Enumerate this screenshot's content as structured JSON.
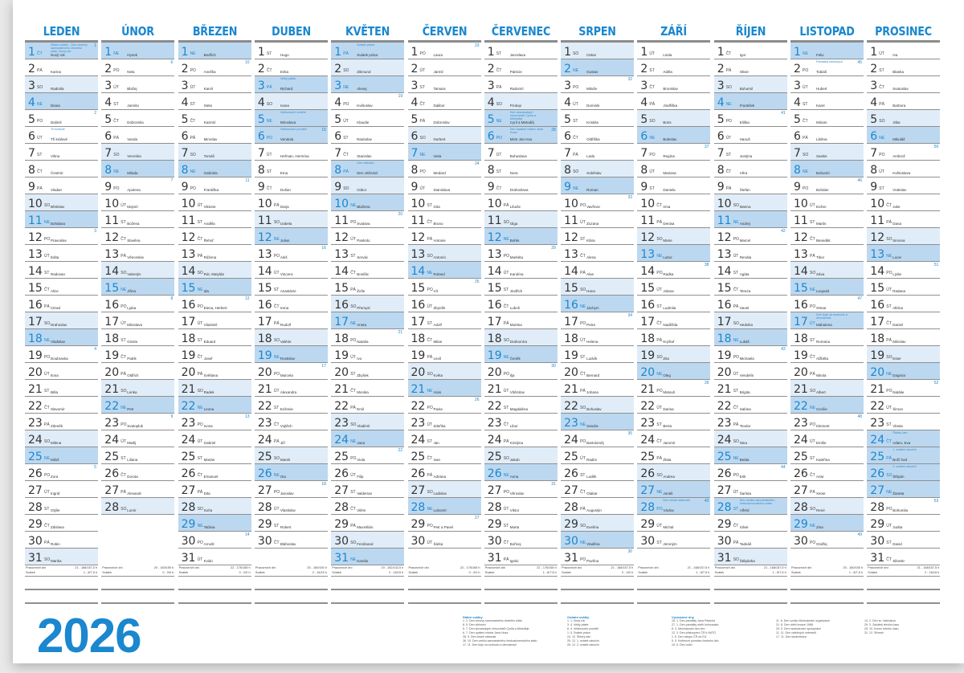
{
  "year": "2026",
  "colors": {
    "accent": "#1a87cf",
    "saturday": "#e0edf8",
    "sunday_holiday": "#bcd8f0"
  },
  "weekdays": [
    "PO",
    "ÚT",
    "ST",
    "ČT",
    "PÁ",
    "SO",
    "NE"
  ],
  "months": [
    {
      "name": "LEDEN",
      "days": [
        "Nový rok",
        "Karina",
        "Radmila",
        "Diana",
        "Dalimil",
        "Tři králové",
        "Vilma",
        "Čestmír",
        "Vladan",
        "Břetislav",
        "Bohdana",
        "Pravoslav",
        "Edita",
        "Radovan",
        "Alice",
        "Ctirad",
        "Drahoslav",
        "Vladislav",
        "Doubravka",
        "Ilona",
        "Běla",
        "Slavomír",
        "Zdeněk",
        "Milena",
        "Miloš",
        "Zora",
        "Ingrid",
        "Otýlie",
        "Zdislava",
        "Robin",
        "Marika"
      ],
      "footer": {
        "work": "21 - 168/157,5 h",
        "holiday": "1 - 8/7,5 h"
      }
    },
    {
      "name": "ÚNOR",
      "days": [
        "Hynek",
        "Nela",
        "Blažej",
        "Jarmila",
        "Dobromila",
        "Vanda",
        "Veronika",
        "Milada",
        "Apolena",
        "Mojmír",
        "Božena",
        "Slavěna",
        "Věnceslav",
        "Valentýn",
        "Jiřina",
        "Ljuba",
        "Miloslava",
        "Gizela",
        "Patrik",
        "Oldřich",
        "Lenka",
        "Petr",
        "Svatopluk",
        "Matěj",
        "Liliana",
        "Dorota",
        "Alexandr",
        "Lumír"
      ],
      "footer": {
        "work": "20 - 160/150 h",
        "holiday": "0 - 0/0 h"
      }
    },
    {
      "name": "BŘEZEN",
      "days": [
        "Bedřich",
        "Anežka",
        "Kamil",
        "Stela",
        "Kazimír",
        "Miroslav",
        "Tomáš",
        "Gabriela",
        "Františka",
        "Viktorie",
        "Anděla",
        "Řehoř",
        "Růžena",
        "Rút, Matylda",
        "Ida",
        "Elena, Herbert",
        "Vlastimil",
        "Eduard",
        "Josef",
        "Světlana",
        "Radek",
        "Leona",
        "Ivona",
        "Gabriel",
        "Marián",
        "Emanuel",
        "Dita",
        "Soňa",
        "Taťána",
        "Arnošt",
        "Kvido"
      ],
      "footer": {
        "work": "22 - 176/165 h",
        "holiday": "0 - 0/0 h"
      }
    },
    {
      "name": "DUBEN",
      "days": [
        "Hugo",
        "Erika",
        "Richard",
        "Ivana",
        "Miroslava",
        "Vendula",
        "Heřman, Hermína",
        "Ema",
        "Dušan",
        "Darja",
        "Izabela",
        "Julius",
        "Aleš",
        "Vincenc",
        "Anastázie",
        "Irena",
        "Rudolf",
        "Valérie",
        "Rostislav",
        "Marcela",
        "Alexandra",
        "Evženie",
        "Vojtěch",
        "Jiří",
        "Marek",
        "Oto",
        "Jaroslav",
        "Vlastislav",
        "Robert",
        "Blahoslav"
      ],
      "footer": {
        "work": "20 - 160/150 h",
        "holiday": "2 - 16/15 h"
      }
    },
    {
      "name": "KVĚTEN",
      "days": [
        "Svátek práce",
        "Zikmund",
        "Alexej",
        "Květoslav",
        "Klaudie",
        "Radoslav",
        "Stanislav",
        "Den vítězství",
        "Ctibor",
        "Blažena",
        "Svatava",
        "Pankrác",
        "Servác",
        "Bonifác",
        "Žofie",
        "Přemysl",
        "Aneta",
        "Nataša",
        "Ivo",
        "Zbyšek",
        "Monika",
        "Emil",
        "Vladimír",
        "Jana",
        "Viola",
        "Filip",
        "Valdemar",
        "Vilém",
        "Maxmilián",
        "Ferdinand",
        "Kamila"
      ],
      "footer": {
        "work": "19 - 152/142,5 h",
        "holiday": "2 - 16/15 h"
      }
    },
    {
      "name": "ČERVEN",
      "days": [
        "Laura",
        "Jarmil",
        "Tamara",
        "Dalibor",
        "Dobroslav",
        "Norbert",
        "Iveta",
        "Medard",
        "Stanislava",
        "Gita",
        "Bruno",
        "Antonie",
        "Antonín",
        "Roland",
        "Vít",
        "Zbyněk",
        "Adolf",
        "Milan",
        "Leoš",
        "Květa",
        "Alois",
        "Pavla",
        "Zdeňka",
        "Jan",
        "Ivan",
        "Adriana",
        "Ladislav",
        "Lubomír",
        "Petr a Pavel",
        "Šárka"
      ],
      "footer": {
        "work": "22 - 176/165 h",
        "holiday": "0 - 0/0 h"
      }
    },
    {
      "name": "ČERVENEC",
      "days": [
        "Jaroslava",
        "Patricie",
        "Radomír",
        "Prokop",
        "Cyril a Metoděj",
        "Mistr Jan Hus",
        "Bohuslava",
        "Nora",
        "Drahoslava",
        "Libuše",
        "Olga",
        "Bořek",
        "Markéta",
        "Karolína",
        "Jindřich",
        "Luboš",
        "Martina",
        "Drahomíra",
        "Čeněk",
        "Ilja",
        "Vítězslav",
        "Magdaléna",
        "Libor",
        "Kristýna",
        "Jakub",
        "Anna",
        "Věroslav",
        "Viktor",
        "Marta",
        "Bořivoj",
        "Ignác"
      ],
      "footer": {
        "work": "22 - 176/165 h",
        "holiday": "1 - 8/7,5 h"
      }
    },
    {
      "name": "SRPEN",
      "days": [
        "Oskar",
        "Gustav",
        "Miluše",
        "Dominik",
        "Kristián",
        "Oldřiška",
        "Lada",
        "Soběslav",
        "Roman",
        "Vavřinec",
        "Zuzana",
        "Klára",
        "Alena",
        "Alan",
        "Hana",
        "Jáchym",
        "Petra",
        "Helena",
        "Ludvík",
        "Bernard",
        "Johana",
        "Bohuslav",
        "Sandra",
        "Bartoloměj",
        "Radim",
        "Luděk",
        "Otakar",
        "Augustýn",
        "Evelína",
        "Vladěna",
        "Pavlína"
      ],
      "footer": {
        "work": "21 - 168/157,5 h",
        "holiday": "0 - 0/0 h"
      }
    },
    {
      "name": "ZÁŘÍ",
      "days": [
        "Linda",
        "Adéla",
        "Bronislav",
        "Jindřiška",
        "Boris",
        "Boleslav",
        "Regína",
        "Mariana",
        "Daniela",
        "Irma",
        "Denisa",
        "Marie",
        "Lubor",
        "Radka",
        "Jolana",
        "Ludmila",
        "Naděžda",
        "Kryštof",
        "Zita",
        "Oleg",
        "Matouš",
        "Darina",
        "Berta",
        "Jaromír",
        "Zlata",
        "Andrea",
        "Jonáš",
        "Václav",
        "Michal",
        "Jeroným"
      ],
      "footer": {
        "work": "21 - 168/157,5 h",
        "holiday": "1 - 8/7,5 h"
      }
    },
    {
      "name": "ŘÍJEN",
      "days": [
        "Igor",
        "Olivie",
        "Bohumil",
        "František",
        "Eliška",
        "Hanuš",
        "Justýna",
        "Věra",
        "Štefan",
        "Marina",
        "Andrej",
        "Marcel",
        "Renáta",
        "Agáta",
        "Tereza",
        "Havel",
        "Hedvika",
        "Lukáš",
        "Michaela",
        "Vendelín",
        "Brigita",
        "Sabina",
        "Teodor",
        "Nina",
        "Beáta",
        "Erik",
        "Šarlota",
        "Alfréd",
        "Silvie",
        "Tadeáš",
        "Štěpánka"
      ],
      "footer": {
        "work": "21 - 168/157,5 h",
        "holiday": "1 - 8/7,5 h"
      }
    },
    {
      "name": "LISTOPAD",
      "days": [
        "Felix",
        "Tobiáš",
        "Hubert",
        "Karel",
        "Miriam",
        "Liběna",
        "Saskie",
        "Bohumír",
        "Bohdan",
        "Evžen",
        "Martin",
        "Benedikt",
        "Tibor",
        "Sáva",
        "Leopold",
        "Otmar",
        "Mahulena",
        "Romana",
        "Alžběta",
        "Nikola",
        "Albert",
        "Cecílie",
        "Klement",
        "Emílie",
        "Kateřina",
        "Artur",
        "Xenie",
        "René",
        "Zina",
        "Ondřej"
      ],
      "footer": {
        "work": "20 - 160/150 h",
        "holiday": "1 - 8/7,5 h"
      }
    },
    {
      "name": "PROSINEC",
      "days": [
        "Iva",
        "Blanka",
        "Svatoslav",
        "Barbora",
        "Jitka",
        "Mikuláš",
        "Ambrož",
        "Květoslava",
        "Vratislav",
        "Julie",
        "Dana",
        "Simona",
        "Lucie",
        "Lýdie",
        "Radana",
        "Albína",
        "Daniel",
        "Miloslav",
        "Ester",
        "Dagmar",
        "Natálie",
        "Šimon",
        "Vlasta",
        "Adam, Eva",
        "Boží hod",
        "Štěpán",
        "Žaneta",
        "Bohumila",
        "Judita",
        "David",
        "Silvestr"
      ],
      "footer": {
        "work": "21 - 168/157,5 h",
        "holiday": "2 - 16/15 h"
      }
    }
  ],
  "notes": {
    "0-1": "Státní svátek - Den obnovy samostatného českého státu, Nový rok",
    "0-6": "Tři králové",
    "3-3": "Velký pátek",
    "3-5": "Velikonoční neděle",
    "3-6": "Velikonoční pondělí",
    "4-1": "Svátek práce",
    "4-8": "Den vítězství",
    "6-5": "Den slovanských věrozvěstů Cyrila a Metoděje",
    "6-6": "Den upálení mistra Jana Husa",
    "8-28": "Den české státnosti",
    "9-28": "Den vzniku samostatného československého státu",
    "10-2": "Památka zesnulých",
    "10-17": "Den boje za svobodu a demokracii",
    "11-24": "Štědrý den",
    "11-25": "1. svátek vánoční",
    "11-26": "2. svátek vánoční"
  },
  "holidays": [
    "0-1",
    "3-3",
    "3-6",
    "4-1",
    "4-8",
    "6-6",
    "8-28",
    "9-28",
    "10-17",
    "11-24",
    "11-25",
    "11-26"
  ],
  "footer_labels": {
    "work": "Pracovních dní",
    "holiday": "Svátek"
  },
  "legend": [
    {
      "title": "Státní svátky",
      "items": [
        "1. 1. Den obnovy samostatného českého státu",
        "8. 5. Den vítězství",
        "5. 7. Den slovanských věrozvěstů Cyrila a Metoděje",
        "6. 7. Den upálení mistra Jana Husa",
        "28. 9. Den české státnosti",
        "28. 10. Den vzniku samostatného československého státu",
        "17. 11. Den boje za svobodu a demokracii"
      ]
    },
    {
      "title": "Ostatní svátky",
      "items": [
        "1. 1. Nový rok",
        "3. 4. Velký pátek",
        "6. 4. Velikonoční pondělí",
        "1. 5. Svátek práce",
        "24. 12. Štědrý den",
        "25. 12. 1. svátek vánoční",
        "26. 12. 2. svátek vánoční"
      ]
    },
    {
      "title": "Významné dny",
      "items": [
        "16. 1. Den památky Jana Palacha",
        "27. 1. Den památky obětí holocaustu",
        "8. 3. Mezinárodní den žen",
        "12. 3. Den přistoupení ČR k NATO",
        "1. 5. Den vstupu ČR do EU",
        "5. 5. Květnové povstání českého lidu",
        "15. 5. Den rodin"
      ]
    },
    {
      "title": "",
      "items": [
        "11. 6. Den vzniku Mezinárodní organizace",
        "21. 8. Den obětí invaze 1968",
        "29. 9. Den mezinárodní spolupráce",
        "11. 11. Den válečných veteránů",
        "17. 11. Den studentstva"
      ]
    },
    {
      "title": "",
      "items": [
        "14. 2. Den sv. Valentýna",
        "29. 3. Začátek letního času",
        "25. 10. Konec letního času",
        "31. 12. Silvestr"
      ]
    }
  ]
}
